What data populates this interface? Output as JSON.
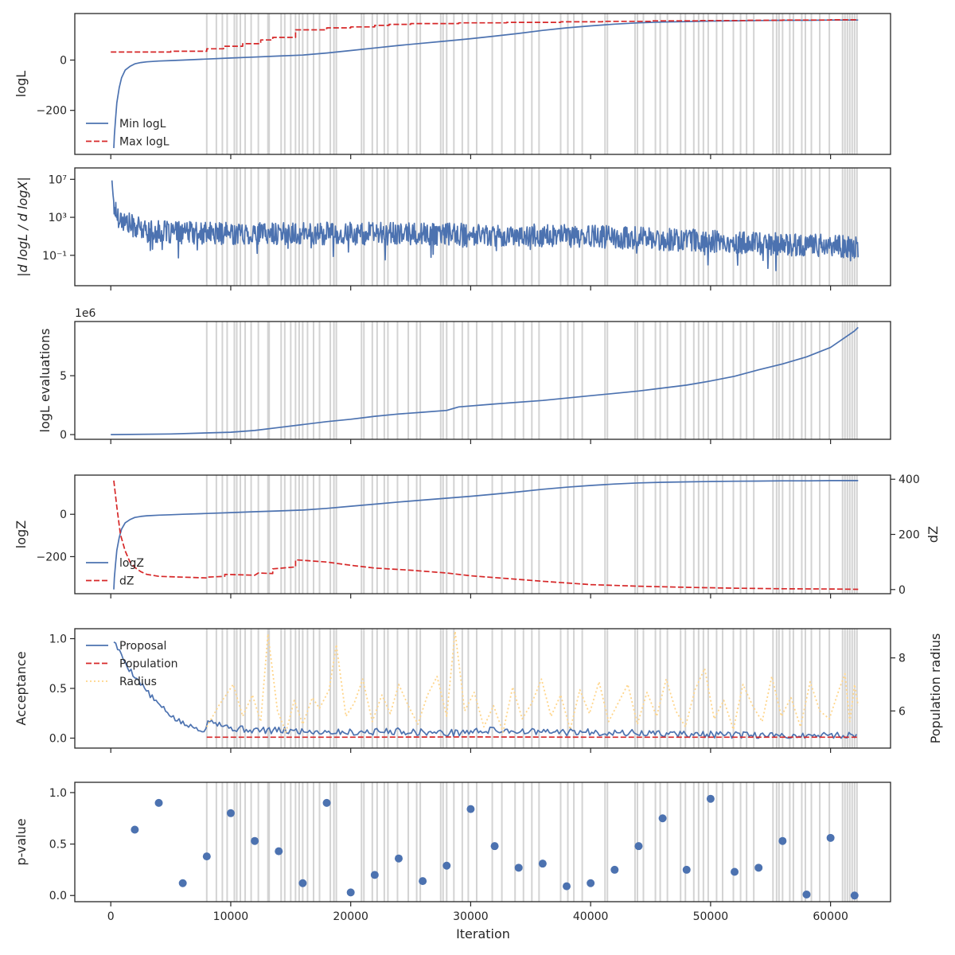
{
  "figure": {
    "shared_xlabel": "Iteration",
    "xlim": [
      -3000,
      65000
    ],
    "x_ticks": [
      0,
      10000,
      20000,
      30000,
      40000,
      50000,
      60000
    ],
    "x_tick_labels": [
      "0",
      "10000",
      "20000",
      "30000",
      "40000",
      "50000",
      "60000"
    ],
    "shaded_iterations_description": "grey vertical bands marking rejected/insertion events, shared across all panels",
    "shaded_iterations": [
      8000,
      8800,
      9300,
      9700,
      10300,
      10500,
      10800,
      11200,
      11700,
      12300,
      13100,
      13200,
      14200,
      14500,
      15000,
      15400,
      15700,
      16000,
      16400,
      16900,
      17400,
      18300,
      18600,
      18800,
      20900,
      21100,
      21800,
      22200,
      22800,
      23100,
      23900,
      24800,
      25500,
      25800,
      27500,
      27700,
      28000,
      28600,
      29300,
      29800,
      30500,
      31800,
      32600,
      33700,
      34400,
      35100,
      35700,
      37500,
      38100,
      38600,
      39300,
      41200,
      41400,
      43700,
      43900,
      44400,
      45400,
      45800,
      46400,
      47500,
      47900,
      48600,
      49000,
      49400,
      49800,
      50500,
      51000,
      51900,
      52500,
      53000,
      53600,
      55200,
      55500,
      55700,
      56000,
      56600,
      56900,
      57600,
      57900,
      58400,
      59100,
      59900,
      61000,
      61200,
      61400,
      61600,
      61800,
      62000,
      62200
    ]
  },
  "chart_data": [
    {
      "id": "logl",
      "type": "line",
      "ylabel": "logL",
      "ylim": [
        -375,
        185
      ],
      "y_ticks": [
        -200,
        0
      ],
      "y_tick_labels": [
        "−200",
        "0"
      ],
      "legend": [
        "Min logL",
        "Max logL"
      ],
      "legend_position": "lower-left",
      "series": [
        {
          "name": "Min logL",
          "color": "#4c72b0",
          "style": "solid",
          "x": [
            250,
            300,
            400,
            500,
            700,
            900,
            1200,
            1600,
            2000,
            2500,
            3000,
            4000,
            5000,
            6000,
            8000,
            10000,
            12000,
            14000,
            16000,
            18000,
            20000,
            22000,
            24000,
            26000,
            28000,
            30000,
            32000,
            34000,
            36000,
            38000,
            40000,
            42000,
            44000,
            46000,
            48000,
            50000,
            52000,
            54000,
            56000,
            58000,
            60000,
            62300
          ],
          "y": [
            -350,
            -300,
            -230,
            -170,
            -110,
            -70,
            -40,
            -25,
            -15,
            -10,
            -7,
            -4,
            -2,
            0,
            4,
            8,
            12,
            16,
            20,
            28,
            38,
            48,
            58,
            67,
            76,
            85,
            95,
            106,
            118,
            128,
            136,
            143,
            148,
            151,
            153,
            155,
            156,
            157,
            158,
            158,
            159,
            159
          ]
        },
        {
          "name": "Max logL",
          "color": "#d62728",
          "style": "dashed",
          "x": [
            0,
            5000,
            5000,
            8000,
            8000,
            9400,
            9400,
            11000,
            11000,
            12500,
            12500,
            13500,
            13500,
            15400,
            15400,
            18000,
            18000,
            20000,
            20000,
            22000,
            22000,
            23200,
            23200,
            25000,
            25000,
            29000,
            29000,
            33000,
            33000,
            37500,
            37500,
            41000,
            41000,
            45000,
            45000,
            49000,
            49000,
            53000,
            53000,
            56000,
            56000,
            60000,
            60000,
            62300
          ],
          "y": [
            32,
            32,
            35,
            35,
            45,
            45,
            55,
            55,
            65,
            65,
            80,
            80,
            90,
            90,
            120,
            120,
            128,
            128,
            132,
            132,
            138,
            138,
            142,
            142,
            145,
            145,
            148,
            148,
            150,
            150,
            152,
            152,
            154,
            154,
            156,
            156,
            157,
            157,
            158,
            158,
            159,
            159,
            160,
            160
          ]
        }
      ]
    },
    {
      "id": "dlogl",
      "type": "line",
      "yscale": "log",
      "ylabel": "|d logL / d logX|",
      "ylim_log10": [
        -4.2,
        8.2
      ],
      "y_ticks_log10": [
        -1,
        3,
        7
      ],
      "y_tick_labels": [
        "10⁻¹",
        "10³",
        "10⁷"
      ],
      "series": [
        {
          "name": "|dlogL/dlogX|",
          "color": "#4c72b0",
          "style": "solid",
          "trend_x": [
            100,
            200,
            500,
            1000,
            2000,
            3000,
            5000,
            10000,
            20000,
            30000,
            40000,
            50000,
            55000,
            60000,
            62300
          ],
          "trend_log10_y": [
            7.5,
            4.5,
            3.3,
            2.6,
            2.0,
            1.5,
            1.4,
            1.3,
            1.3,
            1.2,
            1.0,
            0.5,
            0.2,
            0.0,
            -0.1
          ],
          "noise_amplitude_log10": 1.2
        }
      ]
    },
    {
      "id": "evals",
      "type": "line",
      "ylabel": "logL evaluations",
      "offset_text": "1e6",
      "ylim": [
        -0.4,
        9.6
      ],
      "y_ticks": [
        0,
        5
      ],
      "y_tick_labels": [
        "0",
        "5"
      ],
      "series": [
        {
          "name": "logL evaluations",
          "color": "#4c72b0",
          "style": "solid",
          "x": [
            0,
            5000,
            10000,
            12000,
            14000,
            16000,
            18000,
            20000,
            22000,
            24000,
            26000,
            28000,
            29000,
            32000,
            36000,
            40000,
            42000,
            44000,
            46000,
            48000,
            50000,
            52000,
            54000,
            56000,
            58000,
            60000,
            61000,
            62000,
            62300
          ],
          "y": [
            0.0,
            0.05,
            0.2,
            0.35,
            0.6,
            0.85,
            1.1,
            1.3,
            1.55,
            1.75,
            1.9,
            2.05,
            2.35,
            2.6,
            2.9,
            3.3,
            3.5,
            3.7,
            3.95,
            4.2,
            4.55,
            4.95,
            5.5,
            6.0,
            6.6,
            7.4,
            8.1,
            8.8,
            9.1
          ]
        }
      ]
    },
    {
      "id": "logz",
      "type": "line",
      "ylabel": "logZ",
      "ylabel_right": "dZ",
      "ylim": [
        -375,
        185
      ],
      "y_ticks": [
        -200,
        0
      ],
      "y_tick_labels": [
        "−200",
        "0"
      ],
      "ylim_right": [
        -15,
        415
      ],
      "y_ticks_right": [
        0,
        200,
        400
      ],
      "y_tick_labels_right": [
        "0",
        "200",
        "400"
      ],
      "legend": [
        "logZ",
        "dZ"
      ],
      "legend_position": "lower-left",
      "series": [
        {
          "name": "logZ",
          "color": "#4c72b0",
          "style": "solid",
          "axis": "left",
          "x": [
            250,
            300,
            400,
            500,
            700,
            900,
            1200,
            1600,
            2000,
            2500,
            3000,
            4000,
            5000,
            6000,
            8000,
            10000,
            12000,
            14000,
            16000,
            18000,
            20000,
            22000,
            24000,
            26000,
            28000,
            30000,
            32000,
            34000,
            36000,
            38000,
            40000,
            42000,
            44000,
            46000,
            48000,
            50000,
            52000,
            54000,
            56000,
            58000,
            60000,
            62300
          ],
          "y": [
            -355,
            -300,
            -230,
            -170,
            -110,
            -70,
            -40,
            -25,
            -15,
            -10,
            -7,
            -4,
            -2,
            0,
            4,
            8,
            12,
            16,
            20,
            28,
            38,
            48,
            58,
            67,
            76,
            85,
            95,
            106,
            118,
            128,
            136,
            143,
            148,
            151,
            153,
            155,
            156,
            157,
            158,
            158,
            159,
            159
          ]
        },
        {
          "name": "dZ",
          "color": "#d62728",
          "style": "dashed",
          "axis": "right",
          "x": [
            250,
            500,
            800,
            1200,
            1600,
            2000,
            2500,
            3000,
            4000,
            6000,
            8000,
            8000,
            9500,
            9500,
            12000,
            12300,
            13500,
            13500,
            15400,
            15400,
            18000,
            20000,
            22000,
            25000,
            28000,
            30000,
            33000,
            36000,
            40000,
            44000,
            48000,
            52000,
            56000,
            60000,
            62300
          ],
          "y": [
            395,
            300,
            200,
            140,
            100,
            80,
            65,
            55,
            48,
            45,
            42,
            45,
            48,
            55,
            52,
            60,
            58,
            75,
            82,
            108,
            100,
            88,
            78,
            70,
            60,
            50,
            40,
            30,
            18,
            12,
            8,
            5,
            3,
            2,
            1
          ]
        }
      ]
    },
    {
      "id": "acceptance",
      "type": "line",
      "ylabel": "Acceptance",
      "ylabel_right": "Population radius",
      "ylim": [
        -0.1,
        1.1
      ],
      "y_ticks": [
        0.0,
        0.5,
        1.0
      ],
      "y_tick_labels": [
        "0.0",
        "0.5",
        "1.0"
      ],
      "ylim_right": [
        4.6,
        9.1
      ],
      "y_ticks_right": [
        6,
        8
      ],
      "y_tick_labels_right": [
        "6",
        "8"
      ],
      "legend": [
        "Proposal",
        "Population",
        "Radius"
      ],
      "legend_position": "upper-left",
      "series": [
        {
          "name": "Proposal",
          "color": "#4c72b0",
          "style": "solid",
          "axis": "left",
          "x": [
            250,
            800,
            1500,
            2500,
            3500,
            4500,
            5500,
            6500,
            7500,
            8000,
            8100,
            9000,
            10000,
            12000,
            16000,
            20000,
            24000,
            28000,
            32000,
            36000,
            40000,
            44000,
            48000,
            52000,
            56000,
            60000,
            62300
          ],
          "y": [
            0.98,
            0.85,
            0.7,
            0.55,
            0.4,
            0.28,
            0.18,
            0.12,
            0.09,
            0.08,
            0.2,
            0.15,
            0.1,
            0.08,
            0.07,
            0.06,
            0.07,
            0.05,
            0.08,
            0.06,
            0.06,
            0.05,
            0.04,
            0.03,
            0.02,
            0.03,
            0.03
          ],
          "noise": 0.035
        },
        {
          "name": "Population",
          "color": "#d62728",
          "style": "dashed",
          "axis": "left",
          "x": [
            8000,
            20000,
            30000,
            40000,
            50000,
            62300
          ],
          "y": [
            0.01,
            0.01,
            0.012,
            0.01,
            0.01,
            0.01
          ]
        },
        {
          "name": "Radius",
          "color": "#ffd58a",
          "style": "dotted",
          "axis": "right",
          "x": [
            8000,
            9000,
            10200,
            11000,
            11800,
            12500,
            13100,
            13900,
            14600,
            15300,
            16000,
            16800,
            17400,
            18200,
            18800,
            19600,
            20300,
            21000,
            21800,
            22600,
            23300,
            24000,
            24800,
            25600,
            26400,
            27200,
            28000,
            28700,
            29500,
            30300,
            31100,
            31900,
            32700,
            33500,
            34300,
            35100,
            35900,
            36700,
            37500,
            38300,
            39100,
            39900,
            40700,
            41500,
            42300,
            43100,
            43900,
            44700,
            45500,
            46300,
            47100,
            47900,
            48700,
            49500,
            50300,
            51100,
            51900,
            52700,
            53500,
            54300,
            55100,
            55900,
            56700,
            57500,
            58300,
            59100,
            59900,
            60700,
            61200,
            61600,
            62000,
            62300
          ],
          "y": [
            5.4,
            6.2,
            7.0,
            5.8,
            6.6,
            5.6,
            8.9,
            6.0,
            5.2,
            6.4,
            5.5,
            6.5,
            6.1,
            6.8,
            8.5,
            5.8,
            6.3,
            7.2,
            5.6,
            6.6,
            5.9,
            7.0,
            6.2,
            5.5,
            6.6,
            7.3,
            5.8,
            9.0,
            6.0,
            6.7,
            5.4,
            6.2,
            5.2,
            6.9,
            5.7,
            6.3,
            7.2,
            5.8,
            6.6,
            5.3,
            6.8,
            5.9,
            7.1,
            5.6,
            6.3,
            7.0,
            5.5,
            6.7,
            5.8,
            7.2,
            6.0,
            5.4,
            6.8,
            7.6,
            5.7,
            6.4,
            5.3,
            7.0,
            6.2,
            5.6,
            7.3,
            5.8,
            6.5,
            5.4,
            7.1,
            6.0,
            5.7,
            6.8,
            7.4,
            5.6,
            7.0,
            6.2
          ]
        }
      ]
    },
    {
      "id": "pvalue",
      "type": "scatter",
      "ylabel": "p-value",
      "xlabel": "Iteration",
      "ylim": [
        -0.06,
        1.1
      ],
      "y_ticks": [
        0.0,
        0.5,
        1.0
      ],
      "y_tick_labels": [
        "0.0",
        "0.5",
        "1.0"
      ],
      "series": [
        {
          "name": "p-value",
          "color": "#4c72b0",
          "x": [
            2000,
            4000,
            6000,
            8000,
            10000,
            12000,
            14000,
            16000,
            18000,
            20000,
            22000,
            24000,
            26000,
            28000,
            30000,
            32000,
            34000,
            36000,
            38000,
            40000,
            42000,
            44000,
            46000,
            48000,
            50000,
            52000,
            54000,
            56000,
            58000,
            60000,
            62000
          ],
          "y": [
            0.64,
            0.9,
            0.12,
            0.38,
            0.8,
            0.53,
            0.43,
            0.12,
            0.9,
            0.03,
            0.2,
            0.36,
            0.14,
            0.29,
            0.84,
            0.48,
            0.27,
            0.31,
            0.09,
            0.12,
            0.25,
            0.48,
            0.75,
            0.25,
            0.94,
            0.23,
            0.27,
            0.53,
            0.01,
            0.56,
            0.0
          ]
        }
      ]
    }
  ]
}
